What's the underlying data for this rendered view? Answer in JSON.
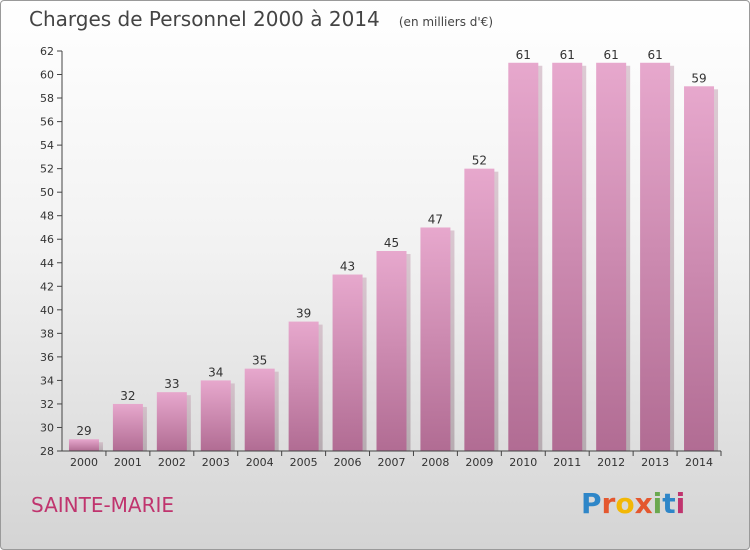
{
  "chart_data": {
    "type": "bar",
    "title": "Charges de Personnel 2000 à 2014",
    "subtitle": "(en milliers d'€)",
    "categories": [
      "2000",
      "2001",
      "2002",
      "2003",
      "2004",
      "2005",
      "2006",
      "2007",
      "2008",
      "2009",
      "2010",
      "2011",
      "2012",
      "2013",
      "2014"
    ],
    "values": [
      29,
      32,
      33,
      34,
      35,
      39,
      43,
      45,
      47,
      52,
      61,
      61,
      61,
      61,
      59
    ],
    "ylim": [
      28,
      62
    ],
    "ytick_step": 2,
    "xlabel": "",
    "ylabel": "",
    "grid": false,
    "bar_color": "#d98fb8"
  },
  "place_name": "SAINTE-MARIE",
  "logo": {
    "letters": [
      "P",
      "r",
      "o",
      "x",
      "i",
      "t",
      "i"
    ],
    "colors": [
      "#2e86c8",
      "#e4572e",
      "#f2b705",
      "#e4572e",
      "#6aa84f",
      "#2e86c8",
      "#c0346e"
    ]
  }
}
